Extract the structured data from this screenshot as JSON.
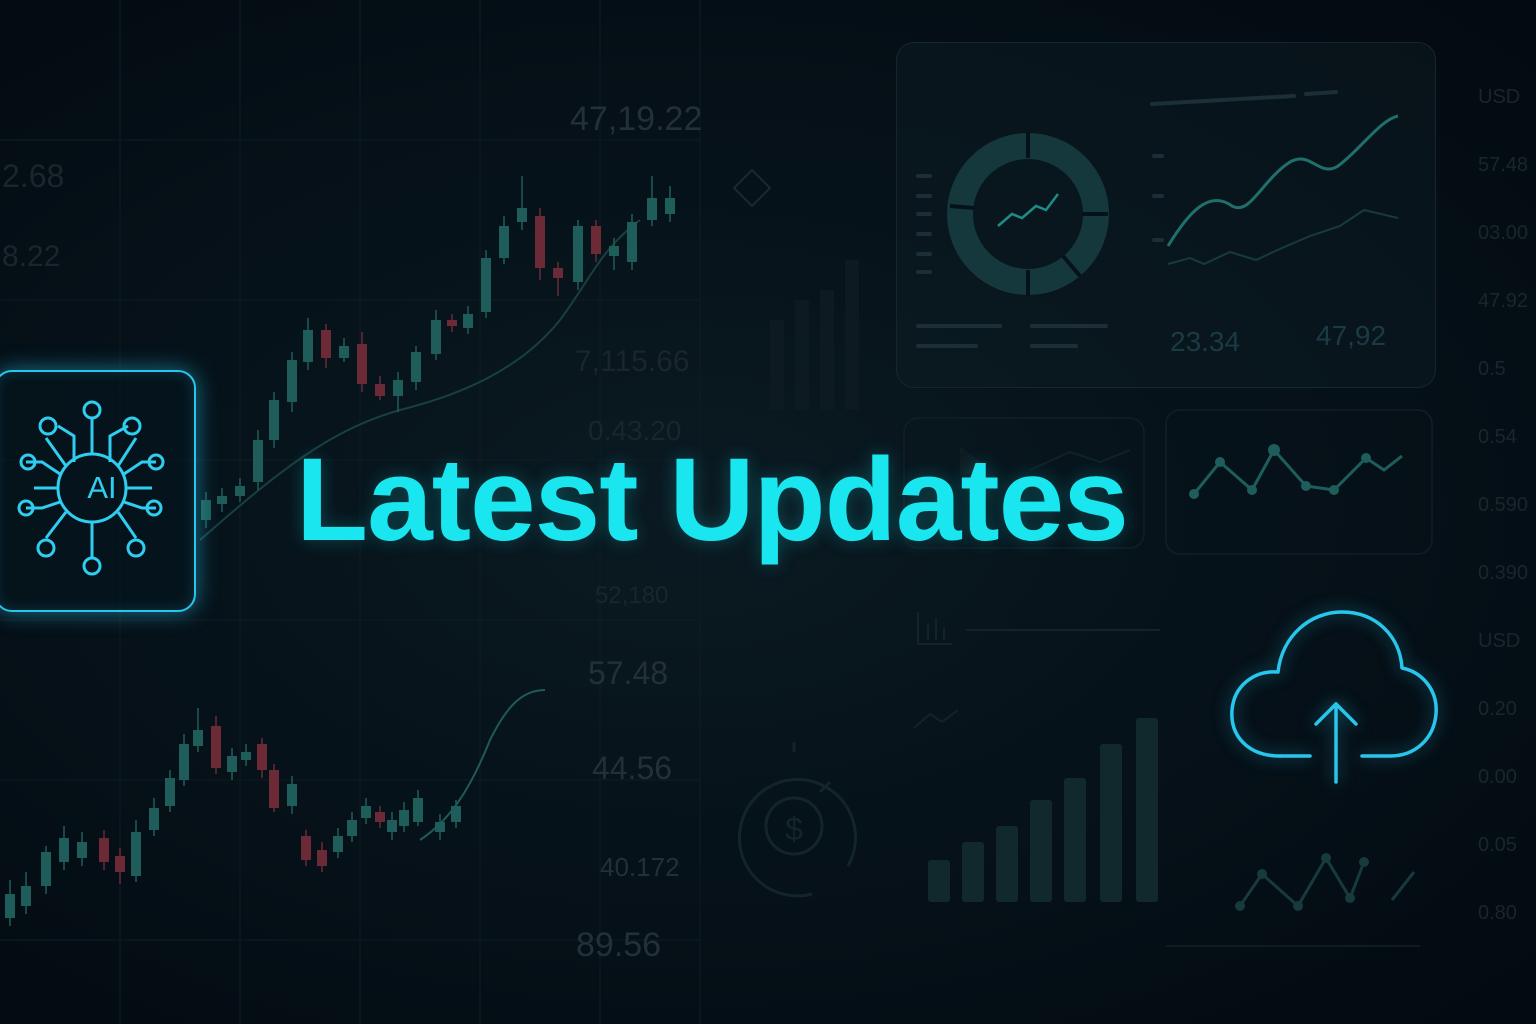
{
  "headline": "Latest Updates",
  "ai_badge": {
    "label": "AI",
    "icon": "neural-network-icon"
  },
  "upload_icon": "cloud-upload-icon",
  "dashboard_card": {
    "value_left": "23.34",
    "value_right": "47,92"
  },
  "background_numbers": {
    "top_price": "47,19.22",
    "left_a": "2.68",
    "left_b": "8.22",
    "mid_a": "7,115.66",
    "mid_b": "0.43.20",
    "mid_c": "52,180",
    "mid_d": "57.48",
    "mid_e": "44.56",
    "mid_f": "40.172",
    "mid_g": "89.56",
    "right_col": [
      "USD",
      "57.48",
      "03.00",
      "47.92",
      "0.5",
      "0.54",
      "0.590",
      "0.390",
      "USD",
      "0.20",
      "0.00",
      "0.05",
      "0.80"
    ]
  },
  "colors": {
    "accent": "#19e6ef",
    "glow": "#28c6ec",
    "candle_up": "#1f5d5a",
    "candle_down": "#6b2a36",
    "background": "#050f16"
  }
}
